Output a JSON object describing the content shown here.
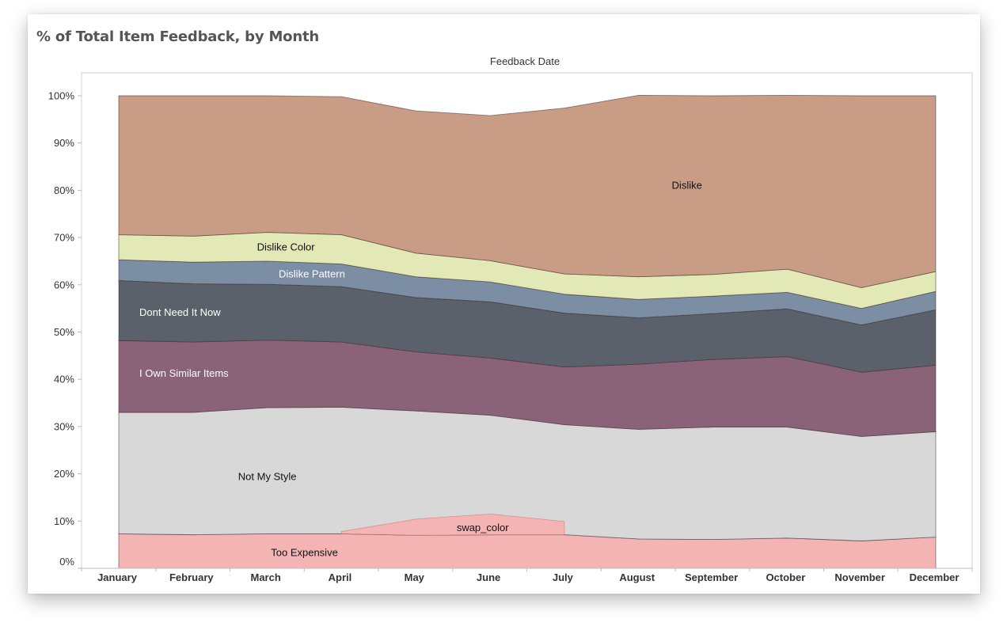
{
  "title": "% of Total Item Feedback, by Month",
  "header": "Feedback Date",
  "chart_data": {
    "type": "area",
    "stacked": true,
    "categories": [
      "January",
      "February",
      "March",
      "April",
      "May",
      "June",
      "July",
      "August",
      "September",
      "October",
      "November",
      "December"
    ],
    "ylim": [
      0,
      100
    ],
    "yticks": [
      "0%",
      "10%",
      "20%",
      "30%",
      "40%",
      "50%",
      "60%",
      "70%",
      "80%",
      "90%",
      "100%"
    ],
    "ytick_values": [
      0,
      10,
      20,
      30,
      40,
      50,
      60,
      70,
      80,
      90,
      100
    ],
    "series": [
      {
        "name": "Too Expensive",
        "color": "#f4b4b4",
        "label_color": "#111111",
        "values": [
          7.3,
          7.1,
          7.3,
          7.3,
          7.0,
          7.1,
          7.1,
          6.2,
          6.1,
          6.4,
          5.8,
          6.6
        ]
      },
      {
        "name": "swap_color",
        "color": "#f4b4b4",
        "label_color": "#111111",
        "values": [
          null,
          null,
          null,
          0.5,
          3.4,
          4.4,
          2.8,
          null,
          null,
          null,
          null,
          null
        ]
      },
      {
        "name": "Not My Style",
        "color": "#d8d8d8",
        "label_color": "#111111",
        "values": [
          25.7,
          25.9,
          26.7,
          26.8,
          26.3,
          25.3,
          23.3,
          23.2,
          23.8,
          23.5,
          22.1,
          22.3
        ]
      },
      {
        "name": "I Own Similar Items",
        "color": "#8b6379",
        "label_color": "#ffffff",
        "values": [
          15.2,
          14.9,
          14.3,
          13.8,
          12.5,
          12.1,
          12.2,
          13.8,
          14.3,
          14.9,
          13.6,
          14.1
        ]
      },
      {
        "name": "Dont Need It Now",
        "color": "#5b616b",
        "label_color": "#ffffff",
        "values": [
          12.7,
          12.3,
          11.8,
          11.7,
          11.5,
          11.9,
          11.4,
          9.8,
          9.7,
          10.1,
          10.0,
          11.7
        ]
      },
      {
        "name": "Dislike Pattern",
        "color": "#7b8ea3",
        "label_color": "#ffffff",
        "values": [
          4.4,
          4.6,
          4.9,
          4.8,
          4.4,
          4.2,
          4.0,
          3.9,
          3.7,
          3.5,
          3.5,
          3.9
        ]
      },
      {
        "name": "Dislike Color",
        "color": "#e2e9b6",
        "label_color": "#111111",
        "values": [
          5.3,
          5.5,
          6.1,
          6.2,
          5.0,
          4.5,
          4.3,
          4.8,
          4.6,
          4.9,
          4.4,
          4.2
        ]
      },
      {
        "name": "Dislike",
        "color": "#c99c86",
        "label_color": "#111111",
        "values": [
          29.4,
          29.7,
          28.9,
          29.2,
          30.1,
          30.7,
          35.1,
          38.4,
          37.8,
          36.8,
          40.6,
          37.2
        ]
      }
    ]
  }
}
